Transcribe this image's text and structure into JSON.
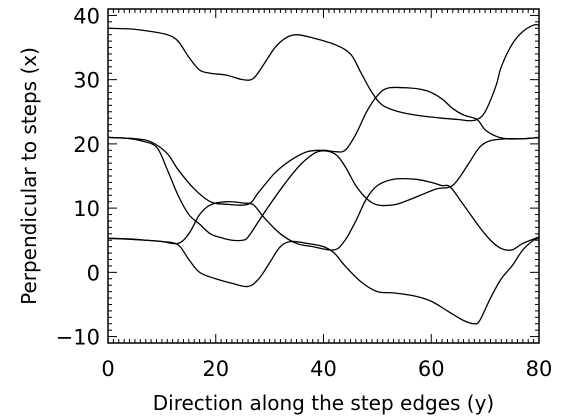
{
  "chart_data": {
    "type": "line",
    "title": "",
    "xlabel": "Direction along the step edges (y)",
    "ylabel": "Perpendicular to steps (x)",
    "xlim": [
      0,
      80
    ],
    "ylim": [
      -11,
      41
    ],
    "xticks": [
      0,
      20,
      40,
      60,
      80
    ],
    "yticks": [
      -10,
      0,
      10,
      20,
      30,
      40
    ],
    "grid": false,
    "series": [
      {
        "values": [
          [
            0,
            38
          ],
          [
            4,
            37.9
          ],
          [
            8,
            37.5
          ],
          [
            11,
            37
          ],
          [
            13,
            36
          ],
          [
            15,
            33.5
          ],
          [
            17,
            31.5
          ],
          [
            19,
            31
          ],
          [
            22,
            30.7
          ],
          [
            25,
            30
          ],
          [
            27,
            30.2
          ],
          [
            29,
            32.5
          ],
          [
            31,
            35
          ],
          [
            33,
            36.5
          ],
          [
            35,
            37
          ],
          [
            38,
            36.5
          ],
          [
            42,
            35.5
          ],
          [
            45,
            34
          ],
          [
            47,
            31
          ],
          [
            49,
            28
          ],
          [
            51,
            26
          ],
          [
            54,
            25
          ],
          [
            57,
            24.5
          ],
          [
            62,
            24
          ],
          [
            65,
            23.8
          ],
          [
            67,
            23.6
          ],
          [
            68.5,
            23.8
          ],
          [
            70,
            25
          ],
          [
            72,
            29
          ],
          [
            73,
            32
          ],
          [
            75,
            35.5
          ],
          [
            77,
            37.5
          ],
          [
            79,
            38.5
          ],
          [
            80,
            38.5
          ]
        ]
      },
      {
        "values": [
          [
            0,
            21
          ],
          [
            5,
            20.8
          ],
          [
            8,
            20.3
          ],
          [
            11,
            18.5
          ],
          [
            13,
            16
          ],
          [
            16,
            13
          ],
          [
            19,
            11
          ],
          [
            22,
            10.6
          ],
          [
            26,
            10.6
          ],
          [
            28,
            12.5
          ],
          [
            31,
            15.5
          ],
          [
            34,
            17.5
          ],
          [
            37,
            18.8
          ],
          [
            40,
            19
          ],
          [
            42,
            18.8
          ],
          [
            44,
            19
          ],
          [
            46,
            21.5
          ],
          [
            48,
            25
          ],
          [
            50,
            27.5
          ],
          [
            52,
            28.7
          ],
          [
            56,
            28.7
          ],
          [
            58,
            28.5
          ],
          [
            60,
            28
          ],
          [
            62,
            27
          ],
          [
            64,
            25.5
          ],
          [
            66,
            24.5
          ],
          [
            68.5,
            23.8
          ],
          [
            70,
            22.2
          ],
          [
            72,
            21.2
          ],
          [
            74,
            20.8
          ],
          [
            77,
            20.8
          ],
          [
            80,
            21
          ]
        ]
      },
      {
        "values": [
          [
            0,
            21
          ],
          [
            3,
            20.9
          ],
          [
            6,
            20.5
          ],
          [
            9,
            19.5
          ],
          [
            11,
            16
          ],
          [
            13,
            12
          ],
          [
            15,
            9
          ],
          [
            17,
            7.5
          ],
          [
            19,
            6
          ],
          [
            21,
            5.4
          ],
          [
            23,
            5
          ],
          [
            25,
            5
          ],
          [
            26,
            5.5
          ],
          [
            28,
            8
          ],
          [
            30,
            10.5
          ],
          [
            33,
            14
          ],
          [
            36,
            17
          ],
          [
            39,
            18.8
          ],
          [
            42,
            18.5
          ],
          [
            44,
            16.5
          ],
          [
            46,
            13.5
          ],
          [
            48,
            11.5
          ],
          [
            50,
            10.5
          ],
          [
            53,
            10.5
          ],
          [
            55,
            11
          ],
          [
            58,
            12
          ],
          [
            61,
            13
          ],
          [
            63.5,
            13.3
          ],
          [
            65,
            14.5
          ],
          [
            67,
            17
          ],
          [
            69,
            19.5
          ],
          [
            71,
            20.5
          ],
          [
            74,
            20.8
          ],
          [
            77,
            20.8
          ],
          [
            80,
            21
          ]
        ]
      },
      {
        "values": [
          [
            0,
            5.3
          ],
          [
            4,
            5.2
          ],
          [
            7,
            5
          ],
          [
            10,
            4.8
          ],
          [
            13,
            4.5
          ],
          [
            15,
            6
          ],
          [
            17,
            9
          ],
          [
            19,
            10.5
          ],
          [
            22,
            11
          ],
          [
            25,
            10.8
          ],
          [
            27,
            10.5
          ],
          [
            29,
            8.5
          ],
          [
            32,
            6
          ],
          [
            35,
            4.5
          ],
          [
            38,
            4
          ],
          [
            42,
            3.5
          ],
          [
            44,
            5
          ],
          [
            46,
            8
          ],
          [
            48,
            11.5
          ],
          [
            50,
            13.5
          ],
          [
            53,
            14.5
          ],
          [
            57,
            14.5
          ],
          [
            60,
            14
          ],
          [
            62,
            13.5
          ],
          [
            63.5,
            13.3
          ],
          [
            66,
            10.5
          ],
          [
            69,
            7
          ],
          [
            71,
            5
          ],
          [
            73,
            3.7
          ],
          [
            75,
            3.5
          ],
          [
            77,
            4.5
          ],
          [
            80,
            5.5
          ]
        ]
      },
      {
        "values": [
          [
            0,
            5.3
          ],
          [
            3,
            5.2
          ],
          [
            7,
            5
          ],
          [
            10,
            4.8
          ],
          [
            13,
            4.3
          ],
          [
            15,
            2
          ],
          [
            17,
            0
          ],
          [
            20,
            -1
          ],
          [
            23,
            -1.7
          ],
          [
            26,
            -2.2
          ],
          [
            28,
            -1
          ],
          [
            30,
            1.5
          ],
          [
            32,
            4
          ],
          [
            34,
            4.8
          ],
          [
            37,
            4.5
          ],
          [
            40,
            4
          ],
          [
            42,
            3
          ],
          [
            44,
            1
          ],
          [
            47,
            -1.5
          ],
          [
            50,
            -3
          ],
          [
            53,
            -3.2
          ],
          [
            57,
            -3.7
          ],
          [
            60,
            -4.5
          ],
          [
            63,
            -6
          ],
          [
            66,
            -7.5
          ],
          [
            68,
            -8
          ],
          [
            69,
            -7.5
          ],
          [
            71,
            -4
          ],
          [
            73,
            -1
          ],
          [
            75,
            1
          ],
          [
            77,
            3.5
          ],
          [
            79,
            5
          ],
          [
            80,
            5.3
          ]
        ]
      }
    ]
  }
}
